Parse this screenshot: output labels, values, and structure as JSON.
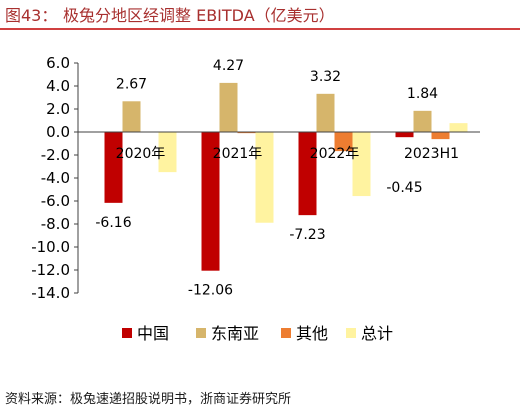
{
  "figure": {
    "number": "图43："
  },
  "source": "资料来源：极兔速递招股说明书，浙商证券研究所",
  "colors": {
    "title": "#A8302F",
    "rule": "#C00000",
    "axis": "#404040"
  },
  "chart_data": {
    "type": "bar",
    "title": "极兔分地区经调整 EBITDA（亿美元）",
    "categories": [
      "2020年",
      "2021年",
      "2022年",
      "2023H1"
    ],
    "series": [
      {
        "name": "中国",
        "color": "#C00000",
        "values": [
          -6.16,
          -12.06,
          -7.23,
          -0.45
        ],
        "show_labels": true
      },
      {
        "name": "东南亚",
        "color": "#D6B56B",
        "values": [
          2.67,
          4.27,
          3.32,
          1.84
        ],
        "show_labels": true
      },
      {
        "name": "其他",
        "color": "#ED7D31",
        "values": [
          0.0,
          -0.1,
          -1.66,
          -0.62
        ],
        "show_labels": false
      },
      {
        "name": "总计",
        "color": "#FFF3A0",
        "values": [
          -3.49,
          -7.89,
          -5.57,
          0.77
        ],
        "show_labels": false
      }
    ],
    "ylim": [
      -14,
      6
    ],
    "yticks": [
      6,
      4,
      2,
      0,
      -2,
      -4,
      -6,
      -8,
      -10,
      -12,
      -14
    ],
    "grid": false,
    "legend": "bottom"
  }
}
